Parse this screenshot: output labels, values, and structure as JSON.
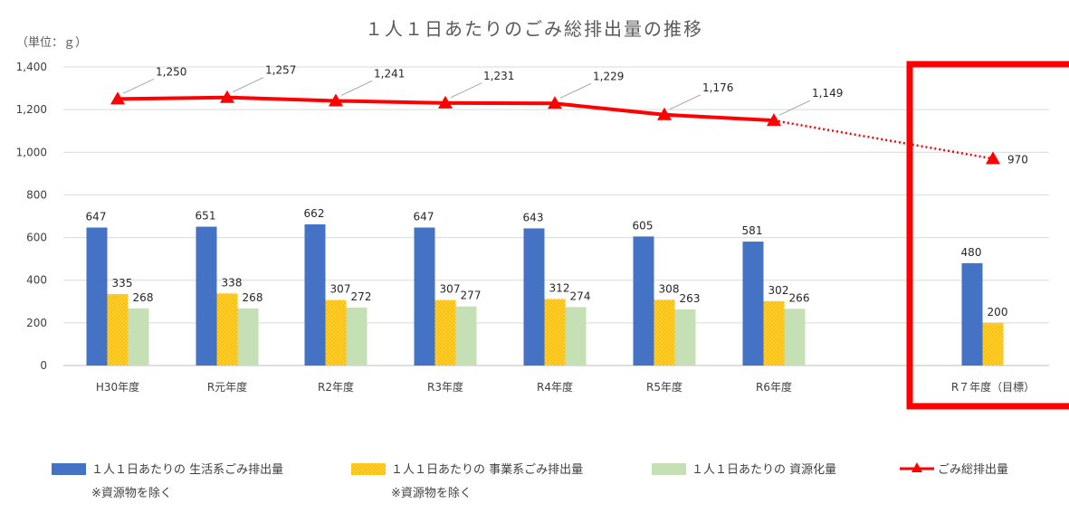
{
  "chart_data": {
    "type": "bar",
    "title": "１人１日あたりのごみ総排出量の推移",
    "unit_label": "（単位：ｇ）",
    "categories": [
      "H30年度",
      "R元年度",
      "R2年度",
      "R3年度",
      "R4年度",
      "R5年度",
      "R6年度",
      "R７年度（目標）"
    ],
    "ylim": [
      0,
      1400
    ],
    "yticks": [
      0,
      200,
      400,
      600,
      800,
      1000,
      1200,
      1400
    ],
    "ytick_labels": [
      "0",
      "200",
      "400",
      "600",
      "800",
      "1,000",
      "1,200",
      "1,400"
    ],
    "grid": true,
    "legend_position": "bottom",
    "series": [
      {
        "name": "１人１日あたりの 生活系ごみ排出量",
        "note": "※資源物を除く",
        "type": "bar",
        "color": "#4472C4",
        "values": [
          647,
          651,
          662,
          647,
          643,
          605,
          581,
          480
        ],
        "labels": [
          "647",
          "651",
          "662",
          "647",
          "643",
          "605",
          "581",
          "480"
        ]
      },
      {
        "name": "１人１日あたりの 事業系ごみ排出量",
        "note": "※資源物を除く",
        "type": "bar",
        "color": "#FFC000",
        "pattern": "dotted",
        "values": [
          335,
          338,
          307,
          307,
          312,
          308,
          302,
          200
        ],
        "labels": [
          "335",
          "338",
          "307",
          "307",
          "312",
          "308",
          "302",
          "200"
        ]
      },
      {
        "name": "１人１日あたりの 資源化量",
        "type": "bar",
        "color": "#C5E0B4",
        "values": [
          268,
          268,
          272,
          277,
          274,
          263,
          266,
          null
        ],
        "labels": [
          "268",
          "268",
          "272",
          "277",
          "274",
          "263",
          "266",
          ""
        ]
      },
      {
        "name": "ごみ総排出量",
        "type": "line",
        "marker": "triangle",
        "color": "#FF0000",
        "values": [
          1250,
          1257,
          1241,
          1231,
          1229,
          1176,
          1149,
          970
        ],
        "labels": [
          "1,250",
          "1,257",
          "1,241",
          "1,231",
          "1,229",
          "1,176",
          "1,149",
          "970"
        ],
        "dotted_from_index": 6
      }
    ],
    "highlight": {
      "category_index": 7,
      "color": "#FF0000"
    }
  }
}
